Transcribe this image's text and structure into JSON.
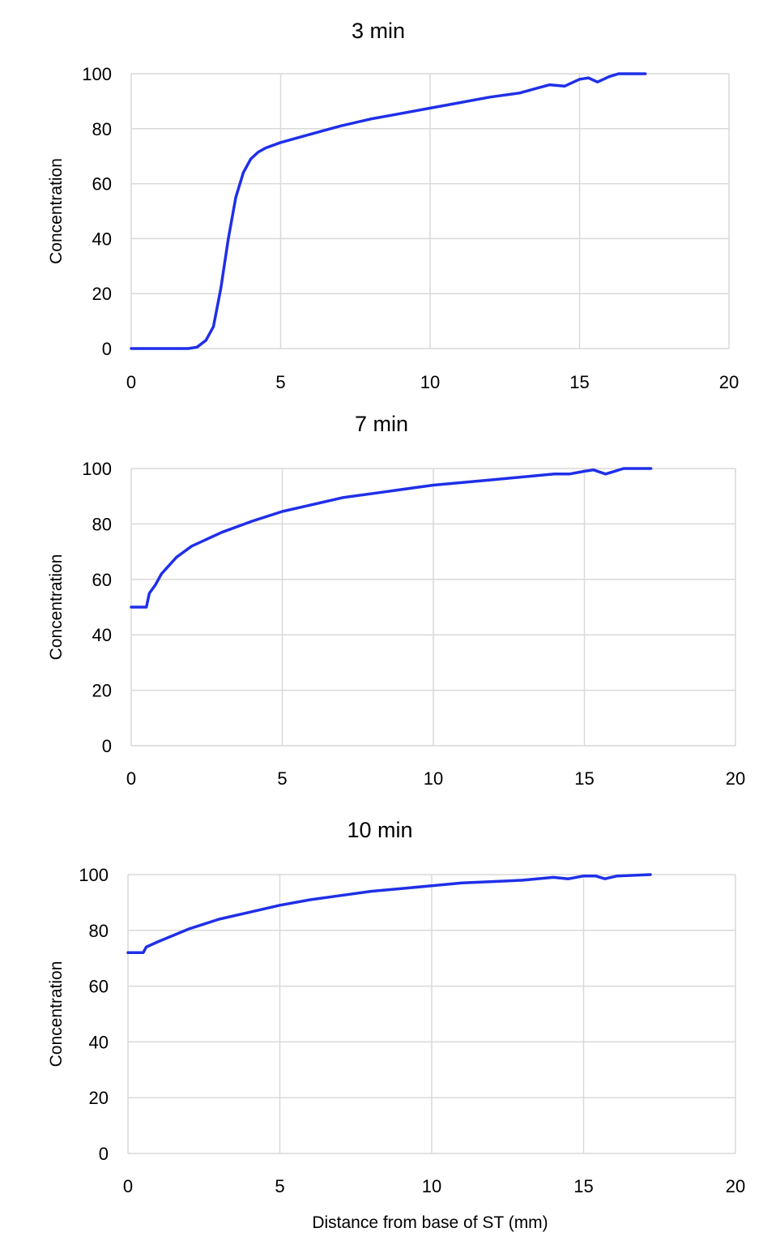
{
  "colors": {
    "series": "#1f2fe8",
    "grid": "#d9d9d9"
  },
  "chart_data": [
    {
      "type": "line",
      "title": "3 min",
      "xlabel": "",
      "ylabel": "Concentration",
      "xlim": [
        0,
        20
      ],
      "ylim": [
        0,
        100
      ],
      "xticks": [
        "0",
        "5",
        "10",
        "15",
        "20"
      ],
      "yticks": [
        "0",
        "20",
        "40",
        "60",
        "80",
        "100"
      ],
      "grid": true,
      "legend": "none",
      "series": [
        {
          "x": [
            0,
            1,
            1.9,
            2.2,
            2.5,
            2.75,
            3.0,
            3.25,
            3.5,
            3.75,
            4.0,
            4.25,
            4.5,
            5,
            6,
            7,
            8,
            9,
            10,
            11,
            12,
            13,
            13.5,
            14,
            14.5,
            15,
            15.3,
            15.6,
            15.8,
            16.0,
            16.3,
            17.2
          ],
          "y": [
            0,
            0,
            0,
            0.5,
            3,
            8,
            22,
            40,
            55,
            64,
            69,
            71.5,
            73,
            75,
            78,
            81,
            83.5,
            85.5,
            87.5,
            89.5,
            91.5,
            93,
            94.5,
            96,
            95.5,
            98,
            98.5,
            97,
            98,
            99,
            100,
            100
          ]
        }
      ]
    },
    {
      "type": "line",
      "title": "7 min",
      "xlabel": "",
      "ylabel": "Concentration",
      "xlim": [
        0,
        20
      ],
      "ylim": [
        0,
        100
      ],
      "xticks": [
        "0",
        "5",
        "10",
        "15",
        "20"
      ],
      "yticks": [
        "0",
        "20",
        "40",
        "60",
        "80",
        "100"
      ],
      "grid": true,
      "legend": "none",
      "series": [
        {
          "x": [
            0,
            0.5,
            0.6,
            0.8,
            1.0,
            1.5,
            2,
            3,
            4,
            5,
            6,
            7,
            8,
            9,
            10,
            11,
            12,
            13,
            14,
            14.5,
            15,
            15.3,
            15.7,
            16.0,
            16.3,
            17.2
          ],
          "y": [
            50,
            50,
            55,
            58,
            62,
            68,
            72,
            77,
            81,
            84.5,
            87,
            89.5,
            91,
            92.5,
            94,
            95,
            96,
            97,
            98,
            98,
            99,
            99.5,
            98,
            99,
            100,
            100
          ]
        }
      ]
    },
    {
      "type": "line",
      "title": "10 min",
      "xlabel": "Distance from base of ST (mm)",
      "ylabel": "Concentration",
      "xlim": [
        0,
        20
      ],
      "ylim": [
        0,
        100
      ],
      "xticks": [
        "0",
        "5",
        "10",
        "15",
        "20"
      ],
      "yticks": [
        "0",
        "20",
        "40",
        "60",
        "80",
        "100"
      ],
      "grid": true,
      "legend": "none",
      "series": [
        {
          "x": [
            0,
            0.5,
            0.6,
            1.0,
            2,
            3,
            4,
            5,
            6,
            7,
            8,
            9,
            10,
            11,
            12,
            13,
            14,
            14.5,
            15,
            15.4,
            15.7,
            16.1,
            17.2
          ],
          "y": [
            72,
            72,
            74,
            76,
            80.5,
            84,
            86.5,
            89,
            91,
            92.5,
            94,
            95,
            96,
            97,
            97.5,
            98,
            99,
            98.5,
            99.5,
            99.5,
            98.5,
            99.5,
            100
          ]
        }
      ]
    }
  ]
}
